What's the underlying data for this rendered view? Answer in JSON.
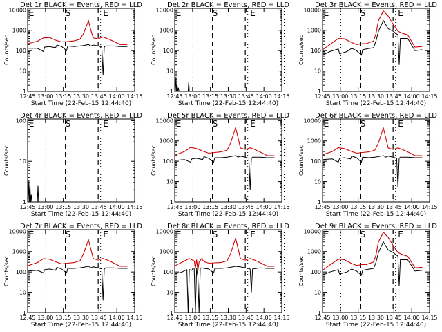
{
  "figure": {
    "background": "#ffffff"
  },
  "chart_data": [
    {
      "type": "line",
      "title": "Det 1r BLACK = Events, RED = LLD",
      "xlabel": "Start Time (22-Feb-15 12:44:40)",
      "ylabel": "Counts/sec",
      "y_scale": "log",
      "yticks": [
        "1",
        "10",
        "100",
        "1000",
        "10000"
      ],
      "ylim": [
        1,
        12000
      ],
      "xticks": [
        "12:45",
        "13:00",
        "13:15",
        "13:30",
        "13:45",
        "14:00",
        "14:15"
      ],
      "markers": [
        "E",
        "S",
        "E"
      ],
      "series": [
        {
          "name": "Events",
          "color": "#000000",
          "x": [
            0,
            8,
            13,
            14,
            18,
            23,
            24,
            28,
            32,
            33,
            38,
            43,
            46,
            50,
            52,
            54,
            58,
            61,
            62,
            63,
            64,
            70,
            76,
            82
          ],
          "y": [
            130,
            130,
            90,
            150,
            160,
            140,
            190,
            160,
            100,
            170,
            160,
            170,
            180,
            200,
            170,
            190,
            170,
            150,
            6,
            150,
            170,
            170,
            160,
            160
          ]
        },
        {
          "name": "LLD",
          "color": "#d00000",
          "x": [
            0,
            8,
            13,
            18,
            24,
            28,
            33,
            38,
            43,
            46,
            50,
            52,
            54,
            58,
            62,
            66,
            70,
            76,
            82
          ],
          "y": [
            220,
            290,
            420,
            440,
            310,
            270,
            280,
            300,
            360,
            700,
            2900,
            1000,
            420,
            380,
            470,
            380,
            300,
            200,
            200
          ]
        }
      ]
    },
    {
      "type": "line",
      "title": "Det 2r BLACK = Events, RED = LLD",
      "xlabel": "Start Time (22-Feb-15 12:44:40)",
      "ylabel": "Counts/sec",
      "y_scale": "log",
      "yticks": [
        "1",
        "10",
        "100",
        "1000",
        "10000"
      ],
      "ylim": [
        1,
        12000
      ],
      "xticks": [
        "12:45",
        "13:00",
        "13:15",
        "13:30",
        "13:45",
        "14:00",
        "14:15"
      ],
      "markers": [
        "E",
        "S",
        "E"
      ],
      "series": [
        {
          "name": "Events",
          "color": "#000000",
          "x": [
            0.5,
            1,
            1.5,
            2,
            2.5,
            3,
            3.5,
            4,
            11,
            11.5,
            12
          ],
          "y": [
            1,
            5,
            1,
            2,
            1,
            1.5,
            1,
            1,
            1,
            3,
            1
          ]
        }
      ]
    },
    {
      "type": "line",
      "title": "Det 3r BLACK = Events, RED = LLD",
      "xlabel": "Start Time (22-Feb-15 12:44:40)",
      "ylabel": "Counts/sec",
      "y_scale": "log",
      "yticks": [
        "1",
        "10",
        "100",
        "1000",
        "10000"
      ],
      "ylim": [
        1,
        12000
      ],
      "xticks": [
        "12:45",
        "13:00",
        "13:15",
        "13:30",
        "13:45",
        "14:00",
        "14:15"
      ],
      "markers": [
        "E",
        "S",
        "E"
      ],
      "series": [
        {
          "name": "Events",
          "color": "#000000",
          "x": [
            0,
            6,
            13,
            14,
            20,
            24,
            28,
            32,
            33,
            36,
            42,
            44,
            46,
            50,
            54,
            58,
            62,
            63,
            64,
            70,
            76,
            82
          ],
          "y": [
            60,
            90,
            120,
            70,
            90,
            130,
            100,
            60,
            110,
            120,
            140,
            300,
            900,
            3000,
            1200,
            900,
            600,
            20,
            400,
            400,
            100,
            110
          ]
        },
        {
          "name": "LLD",
          "color": "#d00000",
          "x": [
            0,
            6,
            13,
            18,
            24,
            28,
            33,
            36,
            42,
            44,
            46,
            50,
            54,
            58,
            62,
            66,
            70,
            76,
            82
          ],
          "y": [
            110,
            200,
            400,
            380,
            250,
            200,
            220,
            220,
            300,
            700,
            3000,
            9000,
            5000,
            2000,
            900,
            700,
            600,
            150,
            160
          ]
        }
      ]
    },
    {
      "type": "line",
      "title": "Det 4r BLACK = Events, RED = LLD",
      "xlabel": "Start Time (22-Feb-15 12:44:40)",
      "ylabel": "Counts/sec",
      "y_scale": "log",
      "yticks": [
        "1",
        "10",
        "100"
      ],
      "ylim": [
        1,
        110
      ],
      "xticks": [
        "12:45",
        "13:00",
        "13:15",
        "13:30",
        "13:45",
        "14:00",
        "14:15"
      ],
      "markers": [
        "E",
        "S",
        "E"
      ],
      "series": [
        {
          "name": "Events",
          "color": "#000000",
          "x": [
            0.5,
            1,
            1.5,
            2,
            2.5,
            3,
            3.5,
            4,
            8,
            8.5,
            9
          ],
          "y": [
            1,
            3.5,
            1,
            2.5,
            1,
            1.5,
            1,
            1,
            1,
            2.5,
            1
          ]
        }
      ]
    },
    {
      "type": "line",
      "title": "Det 5r BLACK = Events, RED = LLD",
      "xlabel": "Start Time (22-Feb-15 12:44:40)",
      "ylabel": "Counts/sec",
      "y_scale": "log",
      "yticks": [
        "1",
        "10",
        "100",
        "1000",
        "10000"
      ],
      "ylim": [
        1,
        12000
      ],
      "xticks": [
        "12:45",
        "13:00",
        "13:15",
        "13:30",
        "13:45",
        "14:00",
        "14:15"
      ],
      "markers": [
        "E",
        "S",
        "E"
      ],
      "series": [
        {
          "name": "Events",
          "color": "#000000",
          "x": [
            0,
            8,
            13,
            14,
            18,
            23,
            24,
            28,
            32,
            33,
            38,
            43,
            46,
            50,
            52,
            54,
            58,
            61,
            62,
            63,
            64,
            70,
            76,
            82
          ],
          "y": [
            110,
            120,
            90,
            130,
            140,
            120,
            170,
            140,
            90,
            150,
            150,
            160,
            170,
            190,
            160,
            180,
            160,
            140,
            4,
            140,
            160,
            160,
            150,
            150
          ]
        },
        {
          "name": "LLD",
          "color": "#d00000",
          "x": [
            0,
            8,
            13,
            18,
            24,
            28,
            33,
            38,
            43,
            46,
            50,
            52,
            54,
            58,
            62,
            66,
            70,
            76,
            82
          ],
          "y": [
            200,
            300,
            480,
            420,
            300,
            250,
            270,
            290,
            350,
            800,
            4500,
            1500,
            450,
            380,
            460,
            370,
            290,
            190,
            190
          ]
        }
      ]
    },
    {
      "type": "line",
      "title": "Det 6r BLACK = Events, RED = LLD",
      "xlabel": "Start Time (22-Feb-15 12:44:40)",
      "ylabel": "Counts/sec",
      "y_scale": "log",
      "yticks": [
        "1",
        "10",
        "100",
        "1000",
        "10000"
      ],
      "ylim": [
        1,
        12000
      ],
      "xticks": [
        "12:45",
        "13:00",
        "13:15",
        "13:30",
        "13:45",
        "14:00",
        "14:15"
      ],
      "markers": [
        "E",
        "S",
        "E"
      ],
      "series": [
        {
          "name": "Events",
          "color": "#000000",
          "x": [
            0,
            8,
            13,
            14,
            18,
            23,
            24,
            28,
            32,
            33,
            38,
            43,
            46,
            50,
            52,
            54,
            58,
            61,
            62,
            63,
            64,
            70,
            76,
            82
          ],
          "y": [
            120,
            130,
            90,
            140,
            150,
            130,
            180,
            150,
            90,
            160,
            150,
            160,
            170,
            190,
            160,
            180,
            160,
            140,
            5,
            140,
            160,
            160,
            150,
            150
          ]
        },
        {
          "name": "LLD",
          "color": "#d00000",
          "x": [
            0,
            8,
            13,
            18,
            24,
            28,
            33,
            38,
            43,
            46,
            50,
            52,
            54,
            58,
            62,
            66,
            70,
            76,
            82
          ],
          "y": [
            210,
            300,
            470,
            420,
            300,
            250,
            270,
            290,
            350,
            800,
            4300,
            1400,
            450,
            380,
            460,
            370,
            290,
            190,
            190
          ]
        }
      ]
    },
    {
      "type": "line",
      "title": "Det 7r BLACK = Events, RED = LLD",
      "xlabel": "Start Time (22-Feb-15 12:44:40)",
      "ylabel": "Counts/sec",
      "y_scale": "log",
      "yticks": [
        "1",
        "10",
        "100",
        "1000",
        "10000"
      ],
      "ylim": [
        1,
        12000
      ],
      "xticks": [
        "12:45",
        "13:00",
        "13:15",
        "13:30",
        "13:45",
        "14:00",
        "14:15"
      ],
      "markers": [
        "E",
        "S",
        "E"
      ],
      "series": [
        {
          "name": "Events",
          "color": "#000000",
          "x": [
            0,
            8,
            13,
            14,
            18,
            23,
            24,
            28,
            32,
            33,
            38,
            43,
            46,
            50,
            52,
            54,
            58,
            61,
            62,
            63,
            64,
            70,
            76,
            82
          ],
          "y": [
            110,
            120,
            90,
            130,
            140,
            120,
            170,
            140,
            90,
            150,
            150,
            160,
            170,
            190,
            160,
            180,
            160,
            140,
            4,
            140,
            160,
            160,
            150,
            150
          ]
        },
        {
          "name": "LLD",
          "color": "#d00000",
          "x": [
            0,
            8,
            13,
            18,
            24,
            28,
            33,
            38,
            43,
            46,
            50,
            52,
            54,
            58,
            62,
            66,
            70,
            76,
            82
          ],
          "y": [
            200,
            290,
            450,
            420,
            300,
            250,
            270,
            290,
            350,
            800,
            3800,
            1300,
            450,
            380,
            460,
            370,
            290,
            190,
            190
          ]
        }
      ]
    },
    {
      "type": "line",
      "title": "Det 8r BLACK = Events, RED = LLD",
      "xlabel": "Start Time (22-Feb-15 12:44:40)",
      "ylabel": "Counts/sec",
      "y_scale": "log",
      "yticks": [
        "1",
        "10",
        "100",
        "1000",
        "10000"
      ],
      "ylim": [
        1,
        12000
      ],
      "xticks": [
        "12:45",
        "13:00",
        "13:15",
        "13:30",
        "13:45",
        "14:00",
        "14:15"
      ],
      "markers": [
        "E",
        "S",
        "E"
      ],
      "series": [
        {
          "name": "Events",
          "color": "#000000",
          "x": [
            0,
            6,
            10,
            11,
            12,
            14,
            15,
            16,
            17,
            18,
            19,
            20,
            21,
            22,
            24,
            28,
            32,
            33,
            38,
            43,
            46,
            50,
            54,
            58,
            62,
            63,
            64,
            70,
            76,
            82
          ],
          "y": [
            80,
            100,
            130,
            1,
            130,
            120,
            150,
            150,
            1,
            150,
            60,
            1,
            150,
            160,
            150,
            140,
            90,
            150,
            150,
            160,
            170,
            190,
            180,
            160,
            140,
            10,
            140,
            160,
            150,
            150
          ]
        },
        {
          "name": "LLD",
          "color": "#d00000",
          "x": [
            0,
            6,
            10,
            12,
            14,
            16,
            17,
            18,
            19,
            20,
            22,
            24,
            28,
            33,
            38,
            43,
            46,
            50,
            52,
            54,
            58,
            62,
            66,
            70,
            76,
            82
          ],
          "y": [
            200,
            300,
            400,
            450,
            400,
            350,
            150,
            400,
            120,
            300,
            450,
            320,
            270,
            280,
            290,
            350,
            800,
            4500,
            1500,
            450,
            380,
            460,
            370,
            290,
            190,
            190
          ]
        }
      ]
    },
    {
      "type": "line",
      "title": "Det 9r BLACK = Events, RED = LLD",
      "xlabel": "Start Time (22-Feb-15 12:44:40)",
      "ylabel": "Counts/sec",
      "y_scale": "log",
      "yticks": [
        "1",
        "10",
        "100",
        "1000",
        "10000"
      ],
      "ylim": [
        1,
        12000
      ],
      "xticks": [
        "12:45",
        "13:00",
        "13:15",
        "13:30",
        "13:45",
        "14:00",
        "14:15"
      ],
      "markers": [
        "E",
        "S",
        "E"
      ],
      "series": [
        {
          "name": "Events",
          "color": "#000000",
          "x": [
            0,
            6,
            13,
            14,
            20,
            24,
            28,
            32,
            33,
            36,
            42,
            44,
            46,
            50,
            54,
            58,
            62,
            63,
            64,
            70,
            76,
            82
          ],
          "y": [
            70,
            100,
            130,
            80,
            100,
            140,
            110,
            70,
            120,
            130,
            150,
            300,
            900,
            3000,
            1200,
            900,
            600,
            20,
            400,
            400,
            110,
            120
          ]
        },
        {
          "name": "LLD",
          "color": "#d00000",
          "x": [
            0,
            6,
            13,
            18,
            24,
            28,
            33,
            36,
            42,
            44,
            46,
            50,
            54,
            58,
            62,
            66,
            70,
            76,
            82
          ],
          "y": [
            120,
            220,
            420,
            400,
            260,
            210,
            230,
            230,
            310,
            700,
            3000,
            9000,
            5000,
            2000,
            900,
            700,
            600,
            160,
            170
          ]
        }
      ]
    }
  ]
}
